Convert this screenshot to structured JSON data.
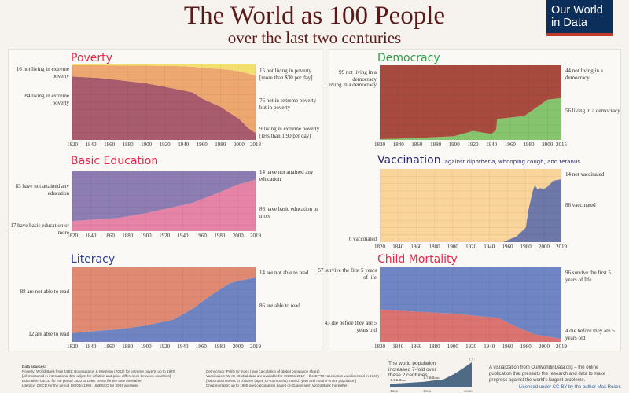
{
  "header": {
    "title": "The World as 100 People",
    "subtitle": "over the last two centuries",
    "logo": "Our World in Data"
  },
  "colors": {
    "title": "#5a1a1a",
    "logo_bg": "#0b2e5a",
    "logo_accent": "#c0392b"
  },
  "chart_data": [
    {
      "id": "poverty",
      "type": "area",
      "stacked": true,
      "title": "Poverty",
      "title_color": "#e8274b",
      "ylim": [
        0,
        100
      ],
      "x_ticks": [
        "1820",
        "1840",
        "1860",
        "1880",
        "1900",
        "1920",
        "1940",
        "1960",
        "1980",
        "2000",
        "2018"
      ],
      "x": [
        1820,
        1850,
        1900,
        1930,
        1950,
        1960,
        1980,
        1990,
        2000,
        2010,
        2018
      ],
      "series": [
        {
          "name": "extreme poverty",
          "color": "#a85c6c",
          "values": [
            84,
            82,
            75,
            68,
            63,
            55,
            44,
            36,
            28,
            16,
            9
          ]
        },
        {
          "name": "poverty",
          "color": "#eea86f",
          "values": [
            15,
            17,
            23.5,
            30,
            34,
            40.5,
            50,
            57,
            63,
            72,
            76
          ]
        },
        {
          "name": "not in poverty",
          "color": "#f2df6d",
          "values": [
            1,
            1,
            1.5,
            2,
            3,
            4.5,
            6,
            7,
            9,
            12,
            15
          ]
        }
      ],
      "labels_left": [
        "16 not living in extreme poverty",
        "84 living in extreme poverty"
      ],
      "labels_right": [
        "15 not living in poverty [more than $30 per day]",
        "76 not in extreme poverty but in poverty",
        "9 living in extreme poverty [less than 1.90 per day]"
      ]
    },
    {
      "id": "democracy",
      "type": "area",
      "stacked": true,
      "title": "Democracy",
      "title_color": "#2e9e4a",
      "ylim": [
        0,
        100
      ],
      "x_ticks": [
        "1820",
        "1840",
        "1860",
        "1880",
        "1900",
        "1920",
        "1940",
        "1960",
        "1980",
        "2000",
        "2015"
      ],
      "x": [
        1820,
        1850,
        1900,
        1920,
        1940,
        1945,
        1946,
        1960,
        1975,
        1990,
        2000,
        2015
      ],
      "series": [
        {
          "name": "living in a democracy",
          "color": "#86c46e",
          "values": [
            1,
            2,
            5,
            12,
            8,
            14,
            28,
            30,
            32,
            45,
            54,
            56
          ]
        },
        {
          "name": "not living in a democracy",
          "color": "#a84b3e",
          "values": [
            99,
            98,
            95,
            88,
            92,
            86,
            72,
            70,
            68,
            55,
            46,
            44
          ]
        }
      ],
      "labels_left": [
        "99 not living in a democracy",
        "1 living in a democracy"
      ],
      "labels_right": [
        "44 not living in a democracy",
        "56 living in a democracy"
      ]
    },
    {
      "id": "education",
      "type": "area",
      "stacked": true,
      "title": "Basic Education",
      "title_color": "#e8274b",
      "ylim": [
        0,
        100
      ],
      "x_ticks": [
        "1820",
        "1840",
        "1860",
        "1880",
        "1900",
        "1920",
        "1940",
        "1960",
        "1980",
        "2000",
        "2019"
      ],
      "x": [
        1820,
        1870,
        1900,
        1950,
        1980,
        2000,
        2019
      ],
      "series": [
        {
          "name": "basic education",
          "color": "#e883a8",
          "values": [
            17,
            22,
            30,
            47,
            65,
            78,
            86
          ]
        },
        {
          "name": "no education",
          "color": "#8d7db3",
          "values": [
            83,
            78,
            70,
            53,
            35,
            22,
            14
          ]
        }
      ],
      "labels_left": [
        "83 have not attained any education",
        "17 have basic education or more"
      ],
      "labels_right": [
        "14 have not attained any education",
        "86 have basic education or more"
      ]
    },
    {
      "id": "vaccination",
      "type": "area",
      "stacked": true,
      "title": "Vaccination",
      "subtitle": "against diphtheria, whooping cough, and tetanus",
      "title_color": "#2b2b6e",
      "ylim": [
        0,
        100
      ],
      "x_ticks": [
        "1820",
        "1840",
        "1860",
        "1880",
        "1900",
        "1920",
        "1940",
        "1960",
        "1980",
        "2000",
        "2019"
      ],
      "x": [
        1820,
        1955,
        1970,
        1980,
        1983,
        1988,
        1990,
        1993,
        1995,
        2000,
        2005,
        2010,
        2019
      ],
      "series": [
        {
          "name": "vaccinated",
          "color": "#6e78a9",
          "values": [
            0,
            0,
            8,
            20,
            45,
            72,
            78,
            72,
            74,
            73,
            77,
            84,
            86
          ]
        },
        {
          "name": "not vaccinated",
          "color": "#fad59b",
          "values": [
            100,
            100,
            92,
            80,
            55,
            28,
            22,
            28,
            26,
            27,
            23,
            16,
            14
          ]
        }
      ],
      "labels_left": [
        "0 vaccinated"
      ],
      "labels_right": [
        "14 not vaccinated",
        "86 vaccinated"
      ]
    },
    {
      "id": "literacy",
      "type": "area",
      "stacked": true,
      "title": "Literacy",
      "title_color": "#2b3f9e",
      "ylim": [
        0,
        100
      ],
      "x_ticks": [
        "1820",
        "1840",
        "1860",
        "1880",
        "1900",
        "1920",
        "1940",
        "1960",
        "1980",
        "2000",
        "2019"
      ],
      "x": [
        1820,
        1870,
        1900,
        1930,
        1950,
        1970,
        1990,
        2000,
        2019
      ],
      "series": [
        {
          "name": "able to read",
          "color": "#6f84c0",
          "values": [
            12,
            17,
            22,
            30,
            44,
            62,
            78,
            82,
            86
          ]
        },
        {
          "name": "not able to read",
          "color": "#e08a73",
          "values": [
            88,
            83,
            78,
            70,
            56,
            38,
            22,
            18,
            14
          ]
        }
      ],
      "labels_left": [
        "88 are not able to read",
        "12 are able to read"
      ],
      "labels_right": [
        "14 are not able to read",
        "86 are able to read"
      ]
    },
    {
      "id": "child_mortality",
      "type": "area",
      "stacked": true,
      "title": "Child Mortality",
      "title_color": "#e8274b",
      "ylim": [
        0,
        100
      ],
      "x_ticks": [
        "1820",
        "1840",
        "1860",
        "1880",
        "1900",
        "1920",
        "1940",
        "1960",
        "1980",
        "2000",
        "2019"
      ],
      "x": [
        1820,
        1900,
        1950,
        1970,
        1990,
        2019
      ],
      "series": [
        {
          "name": "die before 5",
          "color": "#db7370",
          "values": [
            43,
            38,
            32,
            20,
            10,
            4
          ]
        },
        {
          "name": "survive",
          "color": "#7085c4",
          "values": [
            57,
            62,
            68,
            80,
            90,
            96
          ]
        }
      ],
      "labels_left": [
        "57 survive the first 5 years of life",
        "43 die before they are 5 years old"
      ],
      "labels_right": [
        "96 survive the first 5 years of life",
        "4 die before they are 5 years old"
      ]
    }
  ],
  "footer": {
    "sources_title": "Data sources:",
    "sources_left": [
      "Poverty: World Bank from 1981; Bourguignon & Morrison (2002) for extreme poverty up to 1970.",
      "[All measured in international $ to adjust for inflation and price differences between countries]",
      "Education: OECD for the period 1820 to 1960. IIASA for the time thereafter.",
      "Literacy: OECD for the period 1820 to 1990. UNESCO for 2004 and later."
    ],
    "sources_right": [
      "Democracy: Polity IV index (own calculation of global population share)",
      "Vaccination: WHO (Global data are available for 1980 to 2017 – the DPT3 vaccination was licenced in 1949)",
      "[Vaccination refers to children (ages 12-23 months) in each year and not the entire population]",
      "Child mortality: up to 1960 own calculations based on Gapminder; World Bank thereafter"
    ],
    "population": {
      "text": "The world population increased 7-fold over these 2 centuries.",
      "labels": [
        "1.1 Billion",
        "1.7 Billion",
        "7.7 Billion"
      ],
      "ticks": [
        "1820",
        "1900",
        "2000"
      ],
      "x": [
        1820,
        1900,
        1950,
        1975,
        2000,
        2018
      ],
      "values": [
        1.1,
        1.7,
        2.5,
        4.1,
        6.1,
        7.7
      ]
    },
    "credit": "A visualization from OurWorldinData.org – the online publication that presents the research and data to make progress against the world's largest problems.",
    "license": "Licensed under CC-BY by the author Max Roser."
  }
}
